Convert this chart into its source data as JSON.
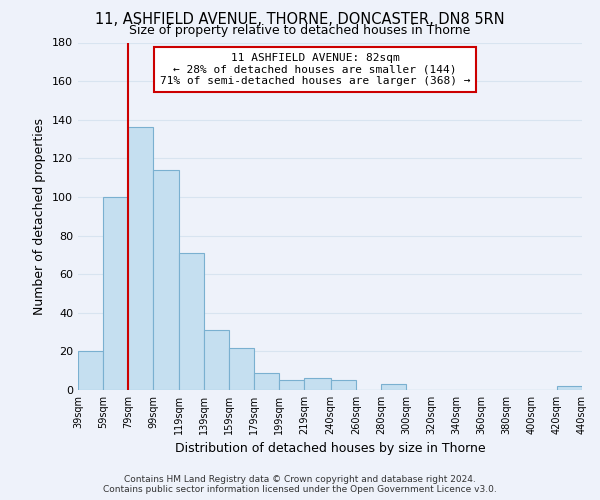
{
  "title": "11, ASHFIELD AVENUE, THORNE, DONCASTER, DN8 5RN",
  "subtitle": "Size of property relative to detached houses in Thorne",
  "xlabel": "Distribution of detached houses by size in Thorne",
  "ylabel": "Number of detached properties",
  "bar_color": "#c5dff0",
  "bar_edge_color": "#7ab0d0",
  "background_color": "#eef2fa",
  "grid_color": "#d8e4f0",
  "bins": [
    "39sqm",
    "59sqm",
    "79sqm",
    "99sqm",
    "119sqm",
    "139sqm",
    "159sqm",
    "179sqm",
    "199sqm",
    "219sqm",
    "240sqm",
    "260sqm",
    "280sqm",
    "300sqm",
    "320sqm",
    "340sqm",
    "360sqm",
    "380sqm",
    "400sqm",
    "420sqm",
    "440sqm"
  ],
  "values": [
    20,
    100,
    136,
    114,
    71,
    31,
    22,
    9,
    5,
    6,
    5,
    0,
    3,
    0,
    0,
    0,
    0,
    0,
    0,
    2
  ],
  "ylim": [
    0,
    180
  ],
  "yticks": [
    0,
    20,
    40,
    60,
    80,
    100,
    120,
    140,
    160,
    180
  ],
  "property_line_x": 79,
  "annotation_title": "11 ASHFIELD AVENUE: 82sqm",
  "annotation_line1": "← 28% of detached houses are smaller (144)",
  "annotation_line2": "71% of semi-detached houses are larger (368) →",
  "annotation_box_color": "white",
  "annotation_box_edge_color": "#cc0000",
  "property_line_color": "#cc0000",
  "footer1": "Contains HM Land Registry data © Crown copyright and database right 2024.",
  "footer2": "Contains public sector information licensed under the Open Government Licence v3.0."
}
